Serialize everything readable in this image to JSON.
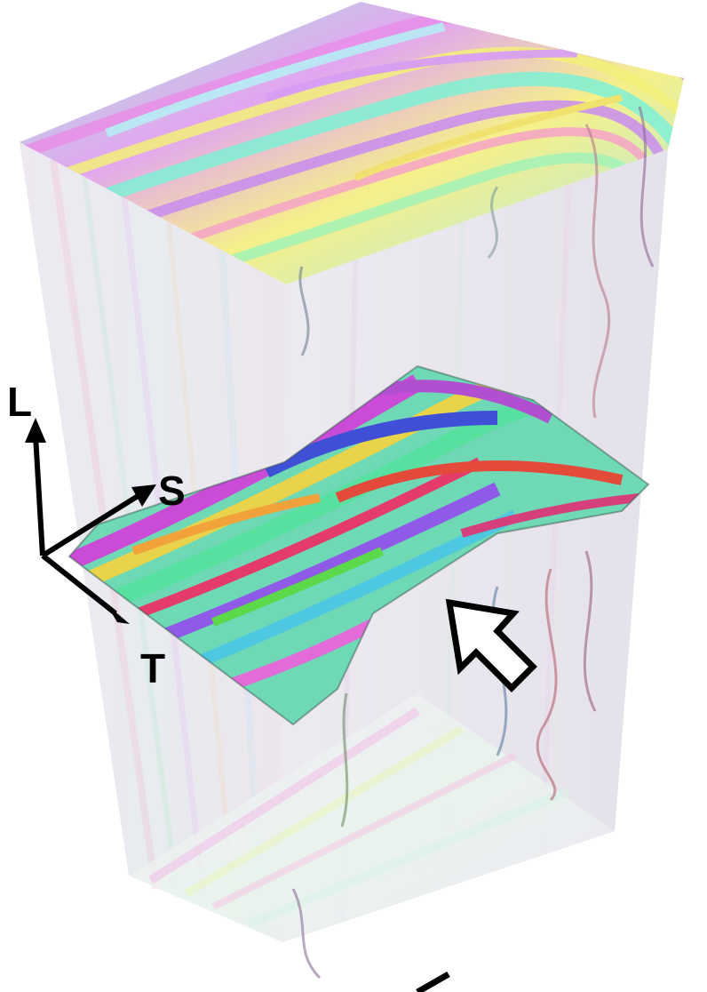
{
  "axes": {
    "longitudinal": "L",
    "short_transverse": "S",
    "transverse": "T"
  },
  "colors": {
    "background": "#ffffff",
    "axis_arrow": "#000000",
    "block_tint": "#e9e3ee",
    "pointer_arrow_fill": "#ffffff",
    "pointer_arrow_stroke": "#000000"
  },
  "icons": {
    "axis_triad": "coordinate-axes-icon",
    "pointer": "pointer-arrow-icon"
  }
}
